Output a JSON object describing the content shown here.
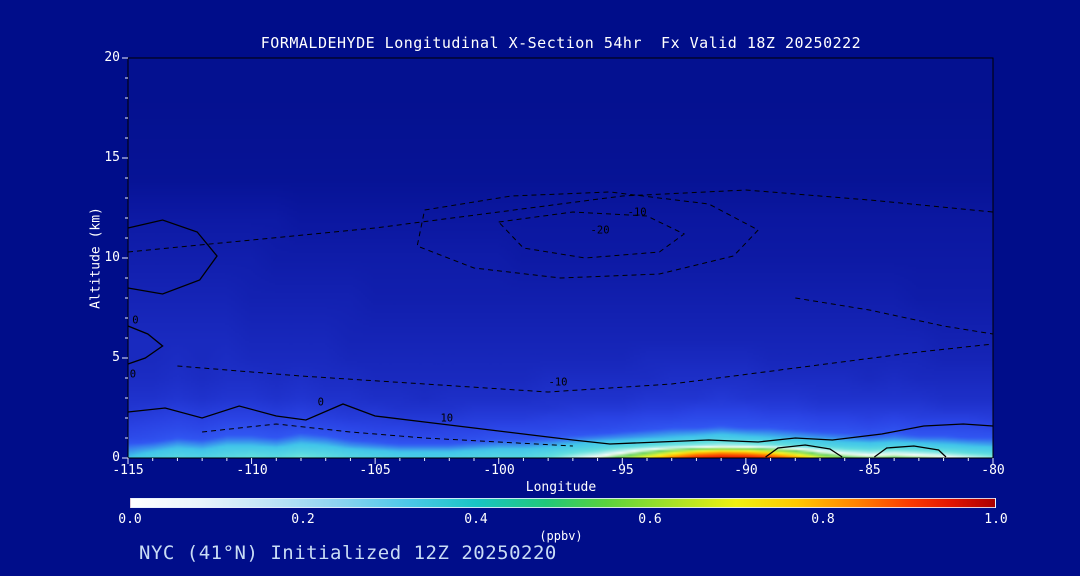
{
  "title": "FORMALDEHYDE Longitudinal X-Section 54hr  Fx Valid 18Z 20250222",
  "footer": "NYC (41°N) Initialized 12Z 20250220",
  "colors": {
    "background": "#000d8a",
    "axis_text": "#ffffff",
    "tick_mark": "#e8ecff",
    "contour": "#000000",
    "footer_text": "#c9dcf5"
  },
  "chart_data": {
    "type": "heatmap",
    "title": "FORMALDEHYDE Longitudinal X-Section 54hr  Fx Valid 18Z 20250222",
    "xlabel": "Longitude",
    "ylabel": "Altitude (km)",
    "xlim": [
      -115,
      -80
    ],
    "ylim": [
      0,
      20
    ],
    "x_ticks": [
      -115,
      -110,
      -105,
      -100,
      -95,
      -90,
      -85,
      -80
    ],
    "x_tick_labels": [
      "-115",
      "-110",
      "-105",
      "-100",
      "-95",
      "-90",
      "-85",
      "-80"
    ],
    "y_ticks": [
      0,
      5,
      10,
      15,
      20
    ],
    "y_tick_labels": [
      "0",
      "5",
      "10",
      "15",
      "20"
    ],
    "grid": false,
    "legend_position": "bottom-colorbar",
    "lons": [
      -115,
      -114,
      -113,
      -112,
      -111,
      -110,
      -109,
      -108,
      -107,
      -106,
      -105,
      -104,
      -103,
      -102,
      -101,
      -100,
      -99,
      -98,
      -97,
      -96,
      -95,
      -94,
      -93,
      -92,
      -91,
      -90,
      -89,
      -88,
      -87,
      -86,
      -85,
      -84,
      -83,
      -82,
      -81,
      -80
    ],
    "alts": [
      0,
      0.3,
      0.6,
      1,
      1.5,
      2,
      2.5,
      3,
      4,
      5,
      6,
      8,
      10,
      12,
      14,
      16,
      18,
      20
    ],
    "values_ppbv": [
      [
        0.3,
        0.33,
        0.35,
        0.34,
        0.36,
        0.38,
        0.36,
        0.4,
        0.37,
        0.35,
        0.34,
        0.33,
        0.32,
        0.33,
        0.34,
        0.35,
        0.35,
        0.38,
        0.44,
        0.5,
        0.6,
        0.7,
        0.82,
        0.92,
        0.96,
        0.95,
        0.9,
        0.8,
        0.66,
        0.58,
        0.54,
        0.57,
        0.54,
        0.5,
        0.46,
        0.42
      ],
      [
        0.28,
        0.3,
        0.32,
        0.31,
        0.33,
        0.34,
        0.33,
        0.35,
        0.34,
        0.32,
        0.31,
        0.3,
        0.3,
        0.3,
        0.31,
        0.32,
        0.32,
        0.34,
        0.37,
        0.4,
        0.46,
        0.55,
        0.64,
        0.72,
        0.76,
        0.74,
        0.68,
        0.6,
        0.5,
        0.44,
        0.41,
        0.43,
        0.41,
        0.39,
        0.36,
        0.34
      ],
      [
        0.26,
        0.27,
        0.29,
        0.28,
        0.3,
        0.3,
        0.29,
        0.31,
        0.3,
        0.28,
        0.27,
        0.26,
        0.26,
        0.26,
        0.27,
        0.28,
        0.28,
        0.29,
        0.31,
        0.33,
        0.35,
        0.37,
        0.4,
        0.42,
        0.44,
        0.43,
        0.41,
        0.38,
        0.35,
        0.33,
        0.32,
        0.33,
        0.32,
        0.31,
        0.3,
        0.29
      ],
      [
        0.22,
        0.23,
        0.25,
        0.24,
        0.26,
        0.26,
        0.25,
        0.27,
        0.26,
        0.24,
        0.23,
        0.22,
        0.22,
        0.22,
        0.23,
        0.24,
        0.24,
        0.25,
        0.26,
        0.27,
        0.28,
        0.29,
        0.3,
        0.31,
        0.32,
        0.31,
        0.3,
        0.29,
        0.28,
        0.27,
        0.26,
        0.27,
        0.26,
        0.26,
        0.25,
        0.25
      ],
      [
        0.2,
        0.21,
        0.22,
        0.21,
        0.23,
        0.23,
        0.22,
        0.23,
        0.22,
        0.21,
        0.2,
        0.2,
        0.19,
        0.2,
        0.2,
        0.21,
        0.21,
        0.21,
        0.22,
        0.22,
        0.23,
        0.24,
        0.25,
        0.25,
        0.26,
        0.25,
        0.25,
        0.24,
        0.23,
        0.23,
        0.22,
        0.23,
        0.22,
        0.22,
        0.22,
        0.21
      ],
      [
        0.18,
        0.19,
        0.2,
        0.19,
        0.2,
        0.2,
        0.19,
        0.2,
        0.19,
        0.18,
        0.18,
        0.17,
        0.17,
        0.17,
        0.18,
        0.18,
        0.18,
        0.19,
        0.19,
        0.2,
        0.2,
        0.21,
        0.21,
        0.22,
        0.22,
        0.22,
        0.21,
        0.21,
        0.2,
        0.2,
        0.19,
        0.2,
        0.19,
        0.19,
        0.19,
        0.18
      ],
      [
        0.16,
        0.17,
        0.18,
        0.17,
        0.18,
        0.18,
        0.17,
        0.18,
        0.17,
        0.16,
        0.16,
        0.15,
        0.15,
        0.15,
        0.16,
        0.16,
        0.16,
        0.16,
        0.17,
        0.17,
        0.17,
        0.18,
        0.18,
        0.19,
        0.19,
        0.19,
        0.18,
        0.18,
        0.17,
        0.17,
        0.17,
        0.17,
        0.17,
        0.16,
        0.16,
        0.16
      ],
      [
        0.15,
        0.15,
        0.16,
        0.15,
        0.16,
        0.16,
        0.15,
        0.16,
        0.15,
        0.15,
        0.14,
        0.14,
        0.13,
        0.14,
        0.14,
        0.14,
        0.14,
        0.15,
        0.15,
        0.15,
        0.15,
        0.16,
        0.16,
        0.16,
        0.17,
        0.16,
        0.16,
        0.16,
        0.15,
        0.15,
        0.15,
        0.15,
        0.15,
        0.14,
        0.14,
        0.14
      ],
      [
        0.13,
        0.13,
        0.14,
        0.13,
        0.14,
        0.14,
        0.13,
        0.14,
        0.13,
        0.13,
        0.12,
        0.12,
        0.12,
        0.12,
        0.12,
        0.12,
        0.12,
        0.13,
        0.13,
        0.13,
        0.13,
        0.13,
        0.14,
        0.14,
        0.14,
        0.14,
        0.13,
        0.13,
        0.13,
        0.13,
        0.12,
        0.13,
        0.12,
        0.12,
        0.12,
        0.12
      ],
      [
        0.12,
        0.12,
        0.13,
        0.12,
        0.13,
        0.12,
        0.12,
        0.12,
        0.12,
        0.11,
        0.11,
        0.11,
        0.11,
        0.11,
        0.11,
        0.11,
        0.11,
        0.11,
        0.11,
        0.11,
        0.11,
        0.12,
        0.12,
        0.12,
        0.12,
        0.12,
        0.11,
        0.11,
        0.11,
        0.11,
        0.11,
        0.11,
        0.11,
        0.1,
        0.1,
        0.1
      ],
      [
        0.12,
        0.12,
        0.12,
        0.12,
        0.12,
        0.11,
        0.11,
        0.11,
        0.11,
        0.1,
        0.1,
        0.1,
        0.1,
        0.1,
        0.1,
        0.1,
        0.1,
        0.1,
        0.1,
        0.1,
        0.1,
        0.1,
        0.1,
        0.1,
        0.1,
        0.1,
        0.1,
        0.1,
        0.1,
        0.1,
        0.1,
        0.1,
        0.1,
        0.09,
        0.09,
        0.09
      ],
      [
        0.1,
        0.1,
        0.1,
        0.1,
        0.1,
        0.09,
        0.09,
        0.09,
        0.09,
        0.09,
        0.08,
        0.08,
        0.08,
        0.08,
        0.08,
        0.08,
        0.08,
        0.08,
        0.08,
        0.08,
        0.08,
        0.08,
        0.08,
        0.08,
        0.08,
        0.08,
        0.08,
        0.08,
        0.08,
        0.08,
        0.08,
        0.08,
        0.07,
        0.07,
        0.07,
        0.07
      ],
      [
        0.08,
        0.08,
        0.08,
        0.08,
        0.08,
        0.08,
        0.07,
        0.07,
        0.07,
        0.07,
        0.07,
        0.07,
        0.07,
        0.07,
        0.07,
        0.07,
        0.06,
        0.06,
        0.06,
        0.06,
        0.06,
        0.06,
        0.06,
        0.06,
        0.06,
        0.06,
        0.06,
        0.06,
        0.06,
        0.06,
        0.06,
        0.06,
        0.06,
        0.06,
        0.06,
        0.06
      ],
      [
        0.06,
        0.06,
        0.06,
        0.06,
        0.06,
        0.06,
        0.06,
        0.05,
        0.05,
        0.05,
        0.05,
        0.05,
        0.05,
        0.05,
        0.05,
        0.05,
        0.05,
        0.05,
        0.05,
        0.05,
        0.05,
        0.05,
        0.05,
        0.05,
        0.05,
        0.05,
        0.05,
        0.05,
        0.05,
        0.05,
        0.05,
        0.05,
        0.05,
        0.05,
        0.05,
        0.05
      ],
      [
        0.03,
        0.03,
        0.03,
        0.03,
        0.03,
        0.03,
        0.03,
        0.03,
        0.03,
        0.03,
        0.03,
        0.03,
        0.03,
        0.03,
        0.03,
        0.03,
        0.03,
        0.03,
        0.03,
        0.03,
        0.03,
        0.03,
        0.03,
        0.03,
        0.03,
        0.03,
        0.03,
        0.03,
        0.03,
        0.03,
        0.03,
        0.03,
        0.03,
        0.03,
        0.03,
        0.03
      ],
      [
        0.025,
        0.025,
        0.025,
        0.025,
        0.025,
        0.025,
        0.025,
        0.025,
        0.025,
        0.025,
        0.025,
        0.025,
        0.025,
        0.025,
        0.025,
        0.025,
        0.025,
        0.025,
        0.025,
        0.025,
        0.025,
        0.025,
        0.025,
        0.025,
        0.025,
        0.025,
        0.025,
        0.025,
        0.025,
        0.025,
        0.025,
        0.025,
        0.025,
        0.025,
        0.025,
        0.025
      ],
      [
        0.02,
        0.02,
        0.02,
        0.02,
        0.02,
        0.02,
        0.02,
        0.02,
        0.02,
        0.02,
        0.02,
        0.02,
        0.02,
        0.02,
        0.02,
        0.02,
        0.02,
        0.02,
        0.02,
        0.02,
        0.02,
        0.02,
        0.02,
        0.02,
        0.02,
        0.02,
        0.02,
        0.02,
        0.02,
        0.02,
        0.02,
        0.02,
        0.02,
        0.02,
        0.02,
        0.02
      ],
      [
        0.02,
        0.02,
        0.02,
        0.02,
        0.02,
        0.02,
        0.02,
        0.02,
        0.02,
        0.02,
        0.02,
        0.02,
        0.02,
        0.02,
        0.02,
        0.02,
        0.02,
        0.02,
        0.02,
        0.02,
        0.02,
        0.02,
        0.02,
        0.02,
        0.02,
        0.02,
        0.02,
        0.02,
        0.02,
        0.02,
        0.02,
        0.02,
        0.02,
        0.02,
        0.02,
        0.02
      ]
    ],
    "fill_colormap": [
      [
        0.0,
        "#000d85"
      ],
      [
        0.05,
        "#0b17a0"
      ],
      [
        0.1,
        "#1524b6"
      ],
      [
        0.15,
        "#1f32cc"
      ],
      [
        0.2,
        "#2a43e4"
      ],
      [
        0.25,
        "#3156f2"
      ],
      [
        0.3,
        "#41c6ea"
      ],
      [
        0.38,
        "#63e0de"
      ],
      [
        0.44,
        "#bdf2ec"
      ],
      [
        0.48,
        "#f6fdf8"
      ],
      [
        0.52,
        "#b9ecb4"
      ],
      [
        0.56,
        "#6ed468"
      ],
      [
        0.62,
        "#a8e84a"
      ],
      [
        0.68,
        "#f2f52d"
      ],
      [
        0.75,
        "#ffc400"
      ],
      [
        0.82,
        "#ff7000"
      ],
      [
        0.9,
        "#f42e00"
      ],
      [
        1.0,
        "#c80000"
      ]
    ],
    "colorbar": {
      "label": "(ppbv)",
      "ticks": [
        "0.0",
        "0.2",
        "0.4",
        "0.6",
        "0.8",
        "1.0"
      ],
      "range": [
        0.0,
        1.0
      ],
      "stops": [
        [
          0.0,
          "#ffffff"
        ],
        [
          0.08,
          "#e8f4fb"
        ],
        [
          0.16,
          "#bfe4f6"
        ],
        [
          0.24,
          "#8cd3f0"
        ],
        [
          0.32,
          "#4cc8e8"
        ],
        [
          0.4,
          "#18c4c4"
        ],
        [
          0.48,
          "#20c87a"
        ],
        [
          0.55,
          "#5ad23c"
        ],
        [
          0.62,
          "#a0e028"
        ],
        [
          0.7,
          "#f0f010"
        ],
        [
          0.77,
          "#ffc800"
        ],
        [
          0.84,
          "#ff8200"
        ],
        [
          0.9,
          "#fa3c00"
        ],
        [
          0.95,
          "#e01400"
        ],
        [
          1.0,
          "#aa0000"
        ]
      ]
    },
    "contours": [
      {
        "style": "solid",
        "points": [
          [
            -115,
            11.5
          ],
          [
            -113.6,
            11.9
          ],
          [
            -112.2,
            11.3
          ],
          [
            -111.4,
            10.1
          ],
          [
            -112.1,
            8.9
          ],
          [
            -113.6,
            8.2
          ],
          [
            -115,
            8.5
          ]
        ]
      },
      {
        "style": "solid",
        "points": [
          [
            -115,
            6.6
          ],
          [
            -114.2,
            6.2
          ],
          [
            -113.6,
            5.6
          ],
          [
            -114.3,
            5.0
          ],
          [
            -115,
            4.7
          ]
        ]
      },
      {
        "style": "solid",
        "points": [
          [
            -115,
            2.3
          ],
          [
            -113.5,
            2.5
          ],
          [
            -112,
            2.0
          ],
          [
            -110.5,
            2.6
          ],
          [
            -109,
            2.1
          ],
          [
            -107.8,
            1.9
          ],
          [
            -106.3,
            2.7
          ],
          [
            -105,
            2.1
          ],
          [
            -103,
            1.8
          ],
          [
            -101,
            1.5
          ],
          [
            -99,
            1.2
          ],
          [
            -97,
            0.9
          ],
          [
            -95.5,
            0.7
          ],
          [
            -93.5,
            0.8
          ],
          [
            -91.5,
            0.9
          ],
          [
            -89.5,
            0.8
          ],
          [
            -88,
            1.0
          ],
          [
            -86.5,
            0.9
          ],
          [
            -84.5,
            1.2
          ],
          [
            -82.8,
            1.6
          ],
          [
            -81.2,
            1.7
          ],
          [
            -80,
            1.6
          ]
        ]
      },
      {
        "style": "solid",
        "points": [
          [
            -89.2,
            0.05
          ],
          [
            -88.7,
            0.5
          ],
          [
            -87.6,
            0.65
          ],
          [
            -86.6,
            0.45
          ],
          [
            -86.1,
            0.05
          ]
        ]
      },
      {
        "style": "solid",
        "points": [
          [
            -84.8,
            0.05
          ],
          [
            -84.3,
            0.5
          ],
          [
            -83.2,
            0.6
          ],
          [
            -82.2,
            0.4
          ],
          [
            -81.9,
            0.05
          ]
        ]
      },
      {
        "style": "dashed",
        "points": [
          [
            -115,
            10.3
          ],
          [
            -110,
            10.9
          ],
          [
            -105,
            11.5
          ],
          [
            -100,
            12.3
          ],
          [
            -95,
            13.1
          ],
          [
            -90,
            13.4
          ],
          [
            -85,
            12.9
          ],
          [
            -80,
            12.3
          ]
        ]
      },
      {
        "style": "dashed",
        "points": [
          [
            -103,
            12.4
          ],
          [
            -99.5,
            13.1
          ],
          [
            -95.5,
            13.3
          ],
          [
            -91.5,
            12.7
          ],
          [
            -89.5,
            11.4
          ],
          [
            -90.5,
            10.1
          ],
          [
            -93.5,
            9.2
          ],
          [
            -97.5,
            9.0
          ],
          [
            -101,
            9.5
          ],
          [
            -103.3,
            10.6
          ],
          [
            -103,
            12.4
          ]
        ]
      },
      {
        "style": "dashed",
        "points": [
          [
            -100,
            11.8
          ],
          [
            -97,
            12.3
          ],
          [
            -94,
            12.1
          ],
          [
            -92.5,
            11.2
          ],
          [
            -93.5,
            10.3
          ],
          [
            -96.5,
            10.0
          ],
          [
            -99,
            10.5
          ],
          [
            -100,
            11.8
          ]
        ]
      },
      {
        "style": "dashed",
        "points": [
          [
            -113,
            4.6
          ],
          [
            -108,
            4.1
          ],
          [
            -103,
            3.7
          ],
          [
            -98,
            3.3
          ],
          [
            -93,
            3.7
          ],
          [
            -88,
            4.5
          ],
          [
            -83,
            5.3
          ],
          [
            -80,
            5.7
          ]
        ]
      },
      {
        "style": "dashed",
        "points": [
          [
            -112,
            1.3
          ],
          [
            -109,
            1.7
          ],
          [
            -106,
            1.3
          ],
          [
            -103,
            1.0
          ],
          [
            -100,
            0.8
          ],
          [
            -97,
            0.6
          ]
        ]
      },
      {
        "style": "dashed",
        "points": [
          [
            -88,
            8.0
          ],
          [
            -85,
            7.4
          ],
          [
            -82,
            6.6
          ],
          [
            -80,
            6.2
          ]
        ]
      }
    ],
    "contour_labels": [
      {
        "text": "-10",
        "lon": -94.4,
        "alt": 12.3
      },
      {
        "text": "-20",
        "lon": -95.9,
        "alt": 11.4
      },
      {
        "text": "-10",
        "lon": -97.6,
        "alt": 3.8
      },
      {
        "text": "10",
        "lon": -102.1,
        "alt": 2.0
      },
      {
        "text": "0",
        "lon": -107.2,
        "alt": 2.8
      },
      {
        "text": "0",
        "lon": -114.7,
        "alt": 6.9
      },
      {
        "text": "0",
        "lon": -114.8,
        "alt": 4.2
      }
    ]
  }
}
